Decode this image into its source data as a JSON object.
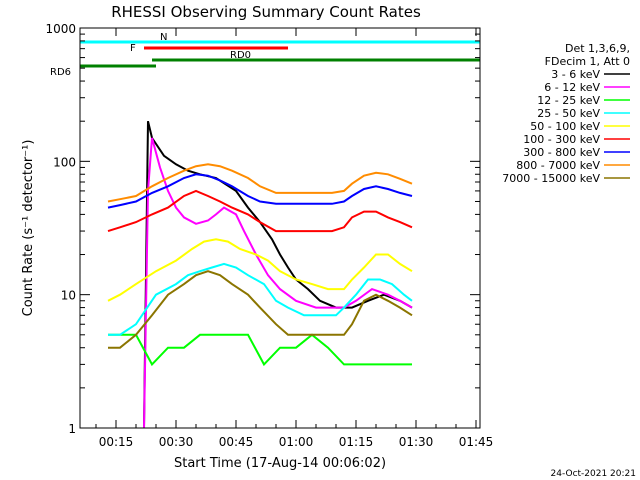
{
  "chart_data": {
    "type": "line",
    "title": "RHESSI Observing Summary Count Rates",
    "xlabel": "Start Time (17-Aug-14 00:06:02)",
    "ylabel": "Count Rate (s⁻¹ detector⁻¹)",
    "y_scale": "log",
    "xlim": [
      6,
      106
    ],
    "ylim": [
      1,
      1000
    ],
    "x_units": "minutes after 00:00 UT",
    "x_ticks": [
      {
        "value": 15,
        "label": "00:15"
      },
      {
        "value": 30,
        "label": "00:30"
      },
      {
        "value": 45,
        "label": "00:45"
      },
      {
        "value": 60,
        "label": "01:00"
      },
      {
        "value": 75,
        "label": "01:15"
      },
      {
        "value": 90,
        "label": "01:30"
      },
      {
        "value": 105,
        "label": "01:45"
      }
    ],
    "y_ticks": [
      {
        "value": 1,
        "label": "1"
      },
      {
        "value": 10,
        "label": "10"
      },
      {
        "value": 100,
        "label": "100"
      },
      {
        "value": 1000,
        "label": "1000"
      }
    ],
    "legend_header": [
      "Det 1,3,6,9,",
      "FDecim 1, Att 0"
    ],
    "legend_position": "right",
    "timestamp": "24-Oct-2021 20:21",
    "series": [
      {
        "name": "3 - 6 keV",
        "color": "#000000",
        "x": [
          22,
          23,
          24,
          27,
          30,
          33,
          36,
          40,
          45,
          48,
          51,
          54,
          56,
          58,
          60,
          63,
          66,
          70,
          72,
          74,
          78,
          82,
          86,
          89
        ],
        "y": [
          1,
          200,
          150,
          110,
          95,
          85,
          80,
          75,
          60,
          45,
          35,
          26,
          20,
          16,
          13,
          11,
          9,
          8,
          8,
          8,
          9,
          10,
          9,
          8
        ]
      },
      {
        "name": "6 - 12 keV",
        "color": "#ff00ff",
        "x": [
          22,
          23,
          24,
          26,
          28,
          30,
          32,
          35,
          38,
          40,
          42,
          45,
          47,
          50,
          53,
          56,
          60,
          65,
          70,
          72,
          75,
          79,
          83,
          86,
          89
        ],
        "y": [
          1,
          60,
          150,
          90,
          60,
          45,
          38,
          34,
          36,
          40,
          45,
          40,
          30,
          20,
          14,
          11,
          9,
          8,
          8,
          8,
          9,
          11,
          10,
          9,
          8
        ]
      },
      {
        "name": "12 - 25 keV",
        "color": "#00ff00",
        "x": [
          13,
          16,
          20,
          24,
          28,
          32,
          36,
          40,
          44,
          48,
          52,
          56,
          60,
          64,
          68,
          72,
          76,
          80,
          84,
          88,
          89
        ],
        "y": [
          5,
          5,
          5,
          3,
          4,
          4,
          5,
          5,
          5,
          5,
          3,
          4,
          4,
          5,
          4,
          3,
          3,
          3,
          3,
          3,
          3
        ]
      },
      {
        "name": "25 - 50 keV",
        "color": "#00ffff",
        "x": [
          13,
          16,
          20,
          25,
          30,
          33,
          36,
          39,
          42,
          45,
          48,
          52,
          55,
          58,
          62,
          66,
          70,
          72,
          75,
          78,
          81,
          84,
          87,
          89
        ],
        "y": [
          5,
          5,
          6,
          10,
          12,
          14,
          15,
          16,
          17,
          16,
          14,
          12,
          9,
          8,
          7,
          7,
          7,
          8,
          10,
          13,
          13,
          12,
          10,
          9
        ]
      },
      {
        "name": "50 - 100 keV",
        "color": "#ffff00",
        "x": [
          13,
          16,
          20,
          25,
          30,
          34,
          37,
          40,
          43,
          46,
          50,
          53,
          56,
          60,
          64,
          68,
          72,
          74,
          77,
          80,
          83,
          86,
          89
        ],
        "y": [
          9,
          10,
          12,
          15,
          18,
          22,
          25,
          26,
          25,
          22,
          20,
          18,
          15,
          13,
          12,
          11,
          11,
          13,
          16,
          20,
          20,
          17,
          15
        ]
      },
      {
        "name": "100 - 300 keV",
        "color": "#ff0000",
        "x": [
          13,
          16,
          20,
          24,
          28,
          32,
          35,
          38,
          41,
          44,
          48,
          51,
          55,
          58,
          61,
          65,
          69,
          72,
          74,
          77,
          80,
          83,
          86,
          89
        ],
        "y": [
          30,
          32,
          35,
          40,
          45,
          55,
          60,
          55,
          50,
          45,
          40,
          35,
          30,
          30,
          30,
          30,
          30,
          32,
          38,
          42,
          42,
          38,
          35,
          32
        ]
      },
      {
        "name": "300 - 800 keV",
        "color": "#0000ff",
        "x": [
          13,
          16,
          20,
          24,
          28,
          32,
          35,
          38,
          41,
          44,
          48,
          51,
          55,
          58,
          61,
          65,
          69,
          72,
          74,
          77,
          80,
          83,
          86,
          89
        ],
        "y": [
          45,
          47,
          50,
          58,
          65,
          75,
          80,
          78,
          72,
          65,
          55,
          50,
          48,
          48,
          48,
          48,
          48,
          50,
          55,
          62,
          65,
          62,
          58,
          55
        ]
      },
      {
        "name": "800 - 7000 keV",
        "color": "#ff8c00",
        "x": [
          13,
          16,
          20,
          24,
          28,
          32,
          35,
          38,
          41,
          44,
          48,
          51,
          55,
          58,
          61,
          65,
          69,
          72,
          74,
          77,
          80,
          83,
          86,
          89
        ],
        "y": [
          50,
          52,
          55,
          65,
          75,
          85,
          92,
          95,
          92,
          85,
          75,
          65,
          58,
          58,
          58,
          58,
          58,
          60,
          68,
          78,
          82,
          80,
          74,
          68
        ]
      },
      {
        "name": "7000 - 15000 keV",
        "color": "#8b7500",
        "x": [
          13,
          16,
          20,
          24,
          28,
          32,
          35,
          38,
          41,
          44,
          48,
          51,
          55,
          58,
          61,
          65,
          69,
          72,
          74,
          77,
          80,
          83,
          86,
          89
        ],
        "y": [
          4,
          4,
          5,
          7,
          10,
          12,
          14,
          15,
          14,
          12,
          10,
          8,
          6,
          5,
          5,
          5,
          5,
          5,
          6,
          9,
          10,
          9,
          8,
          7
        ]
      }
    ],
    "annotations": [
      {
        "label": "N",
        "color": "#00ffff",
        "x_start": 6,
        "x_end": 106
      },
      {
        "label": "F",
        "color": "#ff0000",
        "x_start": 22,
        "x_end": 58
      },
      {
        "label": "RD0",
        "color": "#008000",
        "x_start": 24,
        "x_end": 106
      },
      {
        "label": "RD6",
        "color": "#008000",
        "x_start": 6,
        "x_end": 25
      }
    ]
  }
}
